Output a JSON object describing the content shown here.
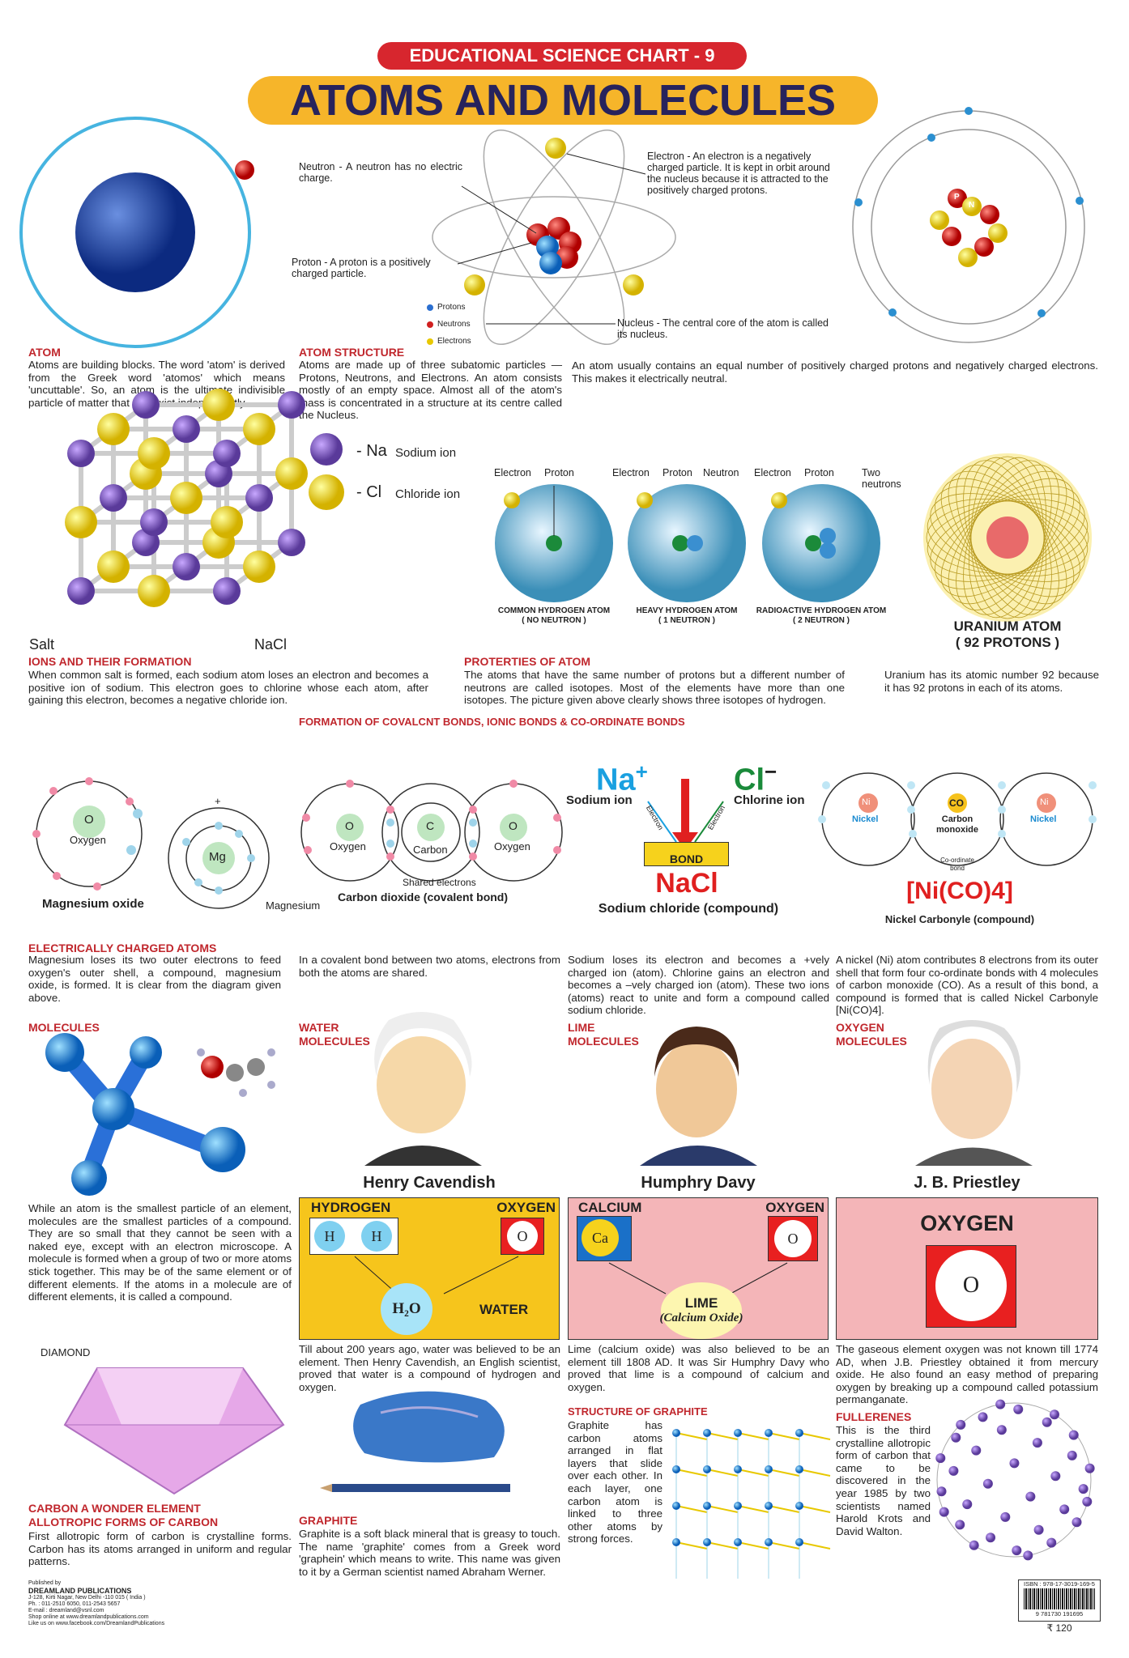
{
  "header": {
    "series": "EDUCATIONAL SCIENCE CHART - 9",
    "title": "ATOMS AND MOLECULES"
  },
  "colors": {
    "red": "#c0272d",
    "yellow_banner": "#f6b52a",
    "title_navy": "#27235c",
    "pink_box": "#f4b5b8",
    "yellow_box": "#f6c51c"
  },
  "atom_structure_labels": {
    "neutron": "Neutron - A neutron has no electric charge.",
    "electron": "Electron - An electron is a negatively charged particle. It is kept in orbit around the nucleus because it is attracted to the positively charged protons.",
    "proton": "Proton - A proton is a positively charged particle.",
    "legend": [
      "Protons",
      "Neutrons",
      "Electrons"
    ],
    "nucleus": "Nucleus - The central core of the atom is called its nucleus.",
    "p": "P",
    "n": "N"
  },
  "atom": {
    "heading": "ATOM",
    "text": "Atoms are building blocks. The word 'atom' is derived from the Greek word 'atomos' which means 'uncuttable'. So, an atom is the ultimate indivisible particle of matter that can exist independently."
  },
  "atom_structure": {
    "heading": "ATOM STRUCTURE",
    "text": "Atoms are made up of three subatomic particles — Protons, Neutrons, and Electrons. An atom consists mostly of an empty space. Almost all of the atom's mass is concentrated in a structure at its centre called the Nucleus."
  },
  "neutral_text": "An atom usually contains an equal number of positively charged protons and negatively charged electrons. This makes it electrically neutral.",
  "salt": {
    "na_symbol": "- Na",
    "na_label": "Sodium ion",
    "cl_symbol": "- Cl",
    "cl_label": "Chloride ion",
    "salt": "Salt",
    "nacl": "NaCl"
  },
  "isotopes": [
    {
      "labels": [
        "Electron",
        "Proton"
      ],
      "caption": "COMMON HYDROGEN ATOM",
      "sub": "( NO NEUTRON )"
    },
    {
      "labels": [
        "Electron",
        "Proton",
        "Neutron"
      ],
      "caption": "HEAVY HYDROGEN ATOM",
      "sub": "( 1 NEUTRON )"
    },
    {
      "labels": [
        "Electron",
        "Proton",
        "Two neutrons"
      ],
      "caption": "RADIOACTIVE HYDROGEN ATOM",
      "sub": "( 2 NEUTRON )"
    }
  ],
  "uranium": {
    "title": "URANIUM ATOM",
    "sub": "( 92 PROTONS )",
    "text": "Uranium has its atomic number 92 because it has 92 protons in each of its atoms."
  },
  "ions": {
    "heading": "IONS AND THEIR FORMATION",
    "text": "When common salt is formed, each sodium atom loses an electron and becomes a positive ion of sodium. This electron goes to chlorine whose each atom, after gaining this electron, becomes a negative chloride ion."
  },
  "properties": {
    "heading": "PROTERTIES OF ATOM",
    "text": "The atoms that have the same number of protons but a different number of neutrons are called isotopes. Most of the elements have more than one isotopes. The picture given above clearly shows three isotopes of hydrogen."
  },
  "bonds_heading": "FORMATION OF COVALCNT BONDS, IONIC BONDS & CO-ORDINATE BONDS",
  "bonds": {
    "mgo": {
      "o": "O",
      "oxygen": "Oxygen",
      "mg": "Mg",
      "magnesium": "Magnesium",
      "caption": "Magnesium oxide",
      "plus": "+"
    },
    "co2": {
      "o": "O",
      "c": "C",
      "oxygen": "Oxygen",
      "carbon": "Carbon",
      "shared": "Shared electrons",
      "caption": "Carbon dioxide (covalent bond)"
    },
    "nacl": {
      "na": "Na",
      "plus": "+",
      "cl": "Cl",
      "minus": "−",
      "sodium_ion": "Sodium  ion",
      "chlorine_ion": "Chlorine  ion",
      "electron": "Electron",
      "bond": "BOND",
      "formula": "NaCl",
      "caption": "Sodium chloride (compound)"
    },
    "nico": {
      "ni": "Ni",
      "nickel": "Nickel",
      "co": "CO",
      "carbon_monoxide": "Carbon monoxide",
      "coord": "Co-ordinate bond",
      "formula": "[Ni(CO)4]",
      "caption": "Nickel  Carbonyle  (compound)"
    }
  },
  "charged": {
    "heading": "ELECTRICALLY CHARGED ATOMS",
    "texts": [
      "Magnesium loses its two outer electrons to feed oxygen's outer shell, a compound, magnesium oxide, is formed. It is clear from the diagram given above.",
      "In a covalent bond between two atoms, electrons from both the atoms are shared.",
      "Sodium loses its electron and becomes a +vely charged ion (atom). Chlorine gains an electron and becomes a –vely charged ion (atom). These two ions (atoms) react to unite and form a compound called sodium chloride.",
      "A nickel (Ni) atom contributes 8 electrons from its outer shell that form four co-ordinate bonds with 4 molecules of carbon monoxide (CO). As a result of this bond, a compound is formed that is called Nickel Carbonyle [Ni(CO)4]."
    ]
  },
  "molecules": {
    "heading": "MOLECULES",
    "text": "While an atom is the smallest particle of an element, molecules are the smallest particles of a compound. They are so small that they cannot be seen with a naked eye, except with an electron microscope. A molecule is formed when a group of two or more atoms stick together. This may be of the same element or of different elements. If the atoms in a molecule are of different elements, it is called a compound."
  },
  "water": {
    "heading1": "WATER",
    "heading2": "MOLECULES",
    "scientist": "Henry Cavendish",
    "hydrogen": "HYDROGEN",
    "oxygen": "OXYGEN",
    "h": "H",
    "o": "O",
    "h2o": "H₂O",
    "water": "WATER",
    "text": "Till about 200 years ago, water was believed to be an element. Then Henry Cavendish, an English scientist, proved that water is a compound of hydrogen and oxygen."
  },
  "lime": {
    "heading1": "LIME",
    "heading2": "MOLECULES",
    "scientist": "Humphry Davy",
    "calcium": "CALCIUM",
    "oxygen": "OXYGEN",
    "ca": "Ca",
    "o": "O",
    "lime": "LIME",
    "lime_sub": "(Calcium Oxide)",
    "text": "Lime (calcium oxide) was also believed to be an element till 1808 AD. It was Sir Humphry Davy who proved that lime is a compound of calcium and oxygen."
  },
  "oxygen": {
    "heading1": "OXYGEN",
    "heading2": "MOLECULES",
    "scientist": "J. B. Priestley",
    "title": "OXYGEN",
    "o": "O",
    "text": "The gaseous element oxygen was not known till 1774 AD, when J.B. Priestley obtained it from mercury oxide. He also found an easy method of preparing oxygen by breaking up a compound called potassium permanganate."
  },
  "diamond_label": "DIAMOND",
  "carbon": {
    "heading1": "CARBON A WONDER ELEMENT",
    "heading2": "ALLOTROPIC FORMS OF CARBON",
    "text": "First allotropic form of carbon is crystalline forms. Carbon has its atoms arranged in uniform and regular patterns."
  },
  "graphite": {
    "heading": "GRAPHITE",
    "text": "Graphite is a soft black mineral that is greasy to touch. The name 'graphite' comes from a Greek word 'graphein' which means to write. This name was given to it by a German scientist named Abraham Werner."
  },
  "graphite_structure": {
    "heading": "STRUCTURE OF GRAPHITE",
    "text": "Graphite has carbon atoms arranged in flat layers that slide over each other. In each layer, one carbon atom is linked to three other atoms by strong forces."
  },
  "fullerenes": {
    "heading": "FULLERENES",
    "text": "This is the third crystalline allotropic form of carbon that came to be discovered in the year 1985 by two scientists named Harold Krots and David Walton."
  },
  "publisher": {
    "by": "Published by",
    "name": "DREAMLAND PUBLICATIONS",
    "address": "J-128, Kirti Nagar, New Delhi -110 015 ( India )",
    "phone": "Ph. : 011-2510 6050, 011-2543 5657",
    "email": "E-mail : dreamland@vsnl.com",
    "shop": "Shop online at www.dreamlandpublications.com",
    "facebook": "Like us on www.facebook.com/DreamlandPublications"
  },
  "isbn": {
    "label": "ISBN : 978-17-3019-169-5",
    "digits": "9 781730 191695",
    "price": "₹ 120"
  }
}
